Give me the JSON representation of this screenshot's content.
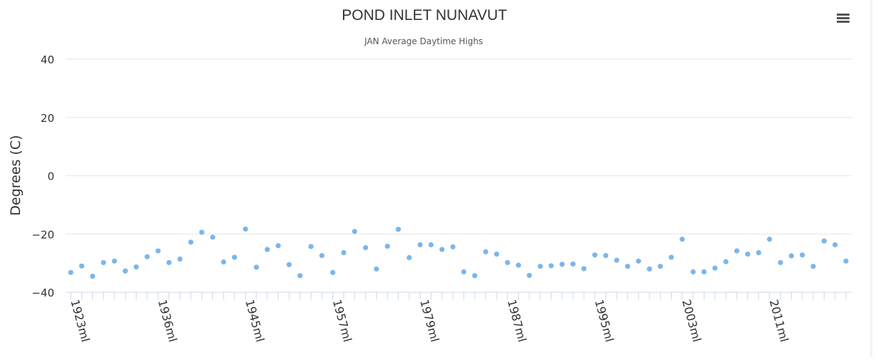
{
  "chart_data": {
    "type": "scatter",
    "title": "POND INLET NUNAVUT",
    "subtitle": "JAN Average Daytime Highs",
    "ylabel": "Degrees (C)",
    "xlabel": "",
    "ylim": [
      -40,
      40
    ],
    "y_ticks": [
      40,
      20,
      0,
      -20,
      -40
    ],
    "x_tick_labels": [
      "1923ml",
      "1936ml",
      "1945ml",
      "1957ml",
      "1979ml",
      "1987ml",
      "1995ml",
      "2003ml",
      "2011ml"
    ],
    "x_tick_indices": [
      0,
      8,
      16,
      24,
      32,
      40,
      48,
      56,
      64
    ],
    "grid": true,
    "point_color": "#7cb5ec",
    "series": [
      {
        "values": [
          -33.2,
          -31.0,
          -34.5,
          -29.8,
          -29.3,
          -32.7,
          -31.3,
          -27.8,
          -25.8,
          -29.8,
          -28.6,
          -22.8,
          -19.4,
          -21.1,
          -29.6,
          -28.0,
          -18.3,
          -31.4,
          -25.3,
          -24.0,
          -30.5,
          -34.3,
          -24.3,
          -27.4,
          -33.2,
          -26.4,
          -19.1,
          -24.7,
          -32.0,
          -24.2,
          -18.4,
          -28.1,
          -23.7,
          -23.7,
          -25.3,
          -24.4,
          -33.0,
          -34.3,
          -26.1,
          -26.9,
          -29.8,
          -30.7,
          -34.2,
          -31.1,
          -30.9,
          -30.4,
          -30.3,
          -31.9,
          -27.2,
          -27.4,
          -29.0,
          -31.1,
          -29.3,
          -32.0,
          -31.1,
          -28.0,
          -21.8,
          -33.0,
          -33.0,
          -31.7,
          -29.5,
          -25.8,
          -26.9,
          -26.4,
          -21.8,
          -29.8,
          -27.5,
          -27.2,
          -31.1,
          -22.4,
          -23.7,
          -29.3
        ]
      }
    ]
  }
}
